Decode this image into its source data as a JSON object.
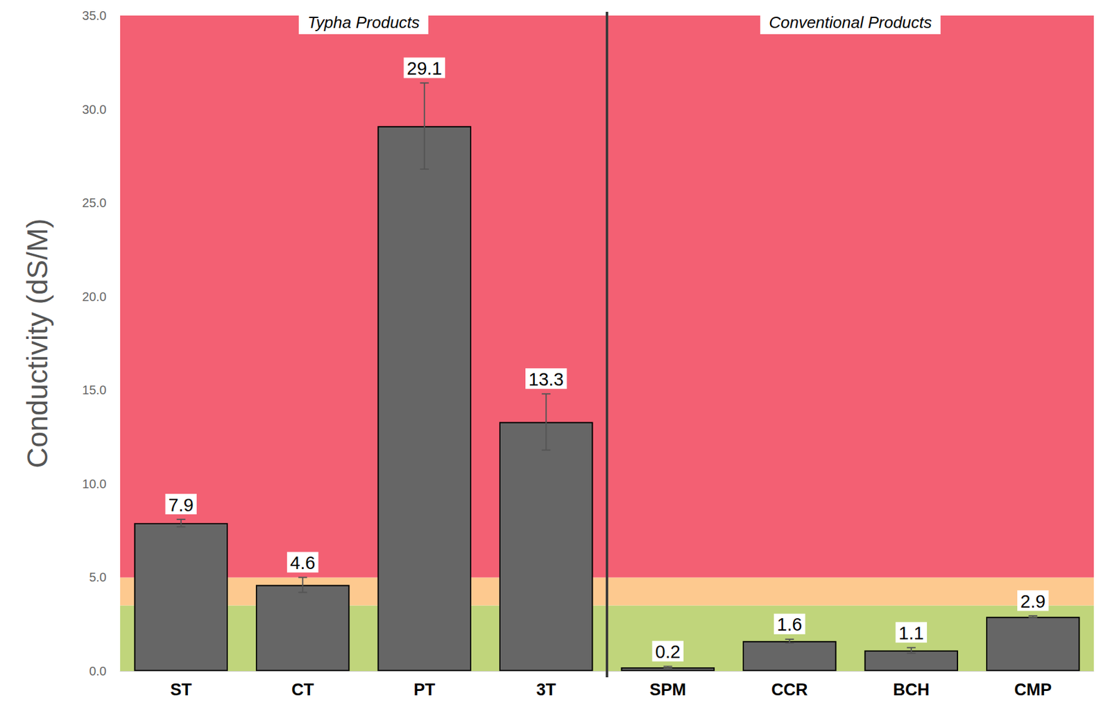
{
  "chart_data": {
    "type": "bar",
    "y_label": "Conductivity (dS/M)",
    "categories": [
      "ST",
      "CT",
      "PT",
      "3T",
      "SPM",
      "CCR",
      "BCH",
      "CMP"
    ],
    "values": [
      7.9,
      4.6,
      29.1,
      13.3,
      0.2,
      1.6,
      1.1,
      2.9
    ],
    "errors": [
      0.2,
      0.4,
      2.3,
      1.5,
      0.05,
      0.1,
      0.15,
      0.05
    ],
    "color": "#666666",
    "ylim": [
      0,
      35
    ],
    "yticks": [
      {
        "value": 0,
        "label": "0.0"
      },
      {
        "value": 5,
        "label": "5.0"
      },
      {
        "value": 10,
        "label": "10.0"
      },
      {
        "value": 15,
        "label": "15.0"
      },
      {
        "value": 20,
        "label": "20.0"
      },
      {
        "value": 25,
        "label": "25.0"
      },
      {
        "value": 30,
        "label": "30.0"
      },
      {
        "value": 35,
        "label": "35.0"
      }
    ],
    "grid": true,
    "data_labels": true,
    "groups": [
      {
        "label": "Typha Products",
        "categories": [
          "ST",
          "CT",
          "PT",
          "3T"
        ]
      },
      {
        "label": "Conventional Products",
        "categories": [
          "SPM",
          "CCR",
          "BCH",
          "CMP"
        ]
      }
    ],
    "bands": [
      {
        "from": 0,
        "to": 3.5,
        "color": "#c0d57b"
      },
      {
        "from": 3.5,
        "to": 5,
        "color": "#fdc98f"
      },
      {
        "from": 5,
        "to": 35,
        "color": "#f36073"
      }
    ]
  }
}
